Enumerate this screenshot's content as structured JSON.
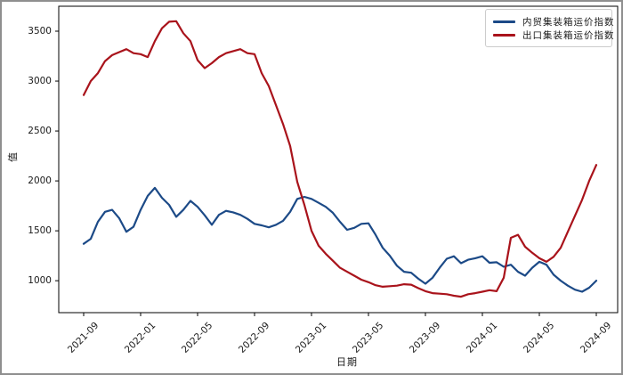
{
  "figure": {
    "border_color": "#8f8f8f",
    "background": "#ffffff"
  },
  "chart_data": {
    "type": "line",
    "title": "",
    "xlabel": "日期",
    "ylabel": "值",
    "grid": false,
    "legend_position": "upper right",
    "ylim": [
      680,
      3750
    ],
    "yticks": [
      1000,
      1500,
      2000,
      2500,
      3000,
      3500
    ],
    "xticks": [
      "2021-09",
      "2022-01",
      "2022-05",
      "2022-09",
      "2023-01",
      "2023-05",
      "2023-09",
      "2024-01",
      "2024-05",
      "2024-09"
    ],
    "x_dates": [
      "2021-09-01",
      "2021-09-15",
      "2021-10-01",
      "2021-10-15",
      "2021-11-01",
      "2021-11-15",
      "2021-12-01",
      "2021-12-15",
      "2022-01-01",
      "2022-01-15",
      "2022-02-01",
      "2022-02-15",
      "2022-03-01",
      "2022-03-15",
      "2022-04-01",
      "2022-04-15",
      "2022-05-01",
      "2022-05-15",
      "2022-06-01",
      "2022-06-15",
      "2022-07-01",
      "2022-07-15",
      "2022-08-01",
      "2022-08-15",
      "2022-09-01",
      "2022-09-15",
      "2022-10-01",
      "2022-10-15",
      "2022-11-01",
      "2022-11-15",
      "2022-12-01",
      "2022-12-15",
      "2023-01-01",
      "2023-01-15",
      "2023-02-01",
      "2023-02-15",
      "2023-03-01",
      "2023-03-15",
      "2023-04-01",
      "2023-04-15",
      "2023-05-01",
      "2023-05-15",
      "2023-06-01",
      "2023-06-15",
      "2023-07-01",
      "2023-07-15",
      "2023-08-01",
      "2023-08-15",
      "2023-09-01",
      "2023-09-15",
      "2023-10-01",
      "2023-10-15",
      "2023-11-01",
      "2023-11-15",
      "2023-12-01",
      "2023-12-15",
      "2024-01-01",
      "2024-01-15",
      "2024-02-01",
      "2024-02-15",
      "2024-03-01",
      "2024-03-15",
      "2024-04-01",
      "2024-04-15",
      "2024-05-01",
      "2024-05-15",
      "2024-06-01",
      "2024-06-15",
      "2024-07-01",
      "2024-07-15",
      "2024-08-01",
      "2024-08-15",
      "2024-09-01"
    ],
    "series": [
      {
        "name": "内贸集装箱运价指数",
        "color": "#1c4a87",
        "values": [
          1370,
          1420,
          1590,
          1690,
          1710,
          1625,
          1490,
          1540,
          1710,
          1850,
          1930,
          1830,
          1760,
          1640,
          1710,
          1800,
          1740,
          1655,
          1560,
          1660,
          1700,
          1685,
          1660,
          1620,
          1570,
          1555,
          1535,
          1560,
          1600,
          1690,
          1820,
          1840,
          1820,
          1780,
          1740,
          1680,
          1590,
          1510,
          1530,
          1570,
          1575,
          1460,
          1330,
          1250,
          1150,
          1090,
          1080,
          1020,
          970,
          1030,
          1130,
          1220,
          1245,
          1175,
          1210,
          1225,
          1245,
          1180,
          1185,
          1140,
          1160,
          1090,
          1050,
          1130,
          1190,
          1160,
          1060,
          1000,
          950,
          910,
          890,
          930,
          1000
        ]
      },
      {
        "name": "出口集装箱运价指数",
        "color": "#a9131b",
        "values": [
          2860,
          3000,
          3080,
          3200,
          3260,
          3290,
          3320,
          3280,
          3270,
          3240,
          3400,
          3530,
          3595,
          3600,
          3480,
          3400,
          3210,
          3130,
          3180,
          3240,
          3280,
          3300,
          3320,
          3280,
          3270,
          3080,
          2950,
          2760,
          2570,
          2350,
          1990,
          1760,
          1500,
          1350,
          1270,
          1200,
          1130,
          1090,
          1050,
          1010,
          985,
          955,
          940,
          945,
          950,
          965,
          960,
          925,
          895,
          875,
          870,
          865,
          850,
          840,
          865,
          875,
          890,
          905,
          895,
          1030,
          1430,
          1460,
          1340,
          1280,
          1225,
          1190,
          1240,
          1330,
          1490,
          1650,
          1810,
          2000,
          2160
        ]
      }
    ]
  }
}
